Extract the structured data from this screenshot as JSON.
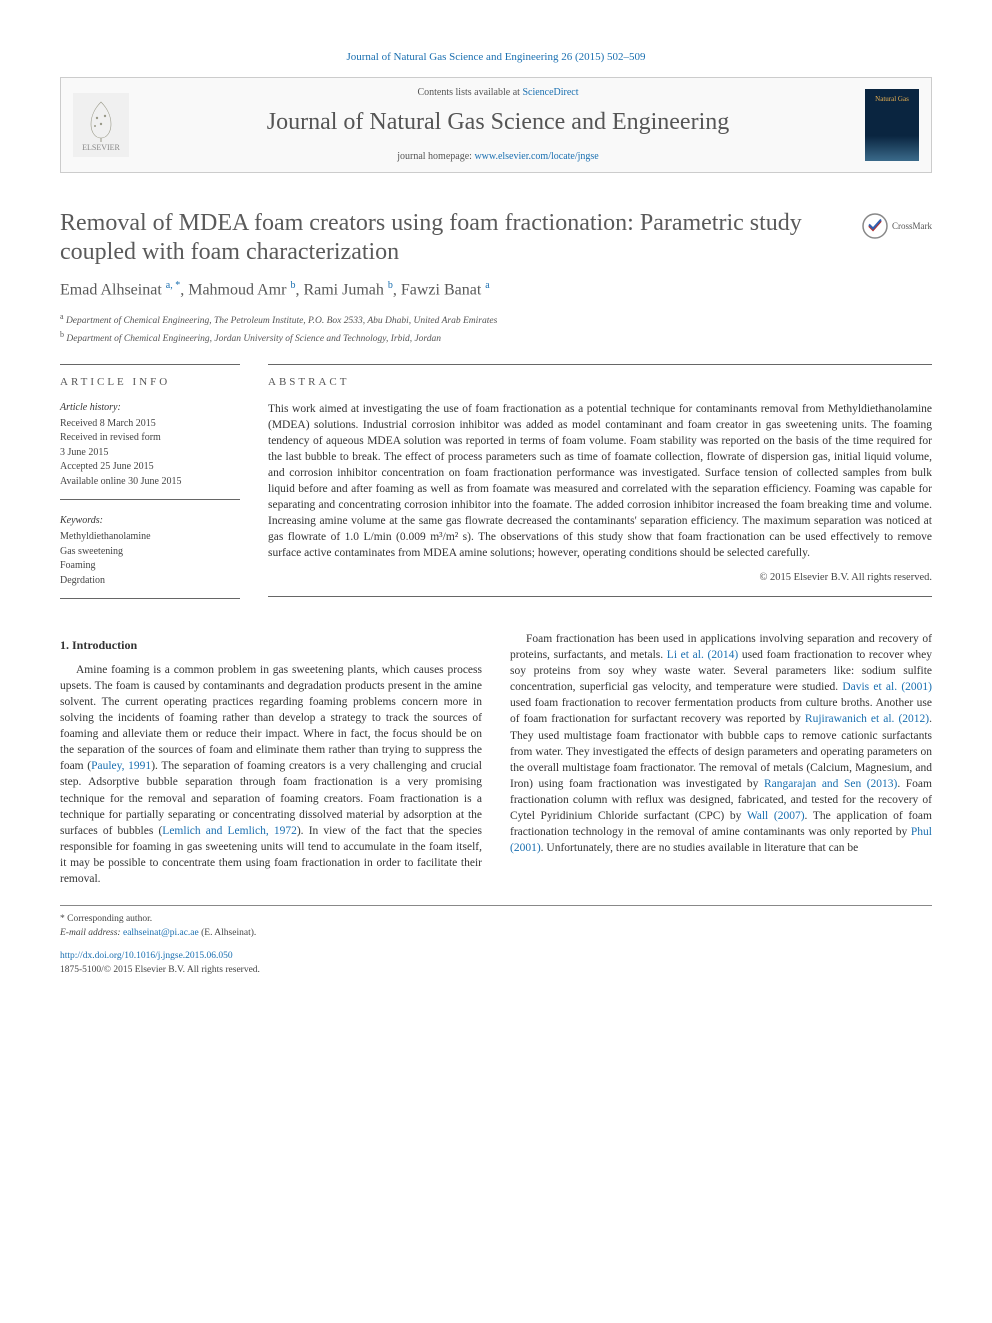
{
  "citation": {
    "prefix": "Journal of Natural Gas Science and Engineering 26 (2015) 502–509"
  },
  "header": {
    "contents_prefix": "Contents lists available at ",
    "contents_link": "ScienceDirect",
    "journal_name": "Journal of Natural Gas Science and Engineering",
    "homepage_prefix": "journal homepage: ",
    "homepage_link": "www.elsevier.com/locate/jngse",
    "elsevier_label": "ELSEVIER",
    "cover_label": "Natural Gas"
  },
  "title": "Removal of MDEA foam creators using foam fractionation: Parametric study coupled with foam characterization",
  "crossmark": "CrossMark",
  "authors_html": "Emad Alhseinat <sup>a, *</sup>, Mahmoud Amr <sup>b</sup>, Rami Jumah <sup>b</sup>, Fawzi Banat <sup>a</sup>",
  "affiliations": {
    "a": "Department of Chemical Engineering, The Petroleum Institute, P.O. Box 2533, Abu Dhabi, United Arab Emirates",
    "b": "Department of Chemical Engineering, Jordan University of Science and Technology, Irbid, Jordan"
  },
  "article_info": {
    "heading": "ARTICLE INFO",
    "history_label": "Article history:",
    "received": "Received 8 March 2015",
    "revised": "Received in revised form",
    "revised_date": "3 June 2015",
    "accepted": "Accepted 25 June 2015",
    "online": "Available online 30 June 2015",
    "keywords_label": "Keywords:",
    "keywords": [
      "Methyldiethanolamine",
      "Gas sweetening",
      "Foaming",
      "Degrdation"
    ]
  },
  "abstract": {
    "heading": "ABSTRACT",
    "text": "This work aimed at investigating the use of foam fractionation as a potential technique for contaminants removal from Methyldiethanolamine (MDEA) solutions. Industrial corrosion inhibitor was added as model contaminant and foam creator in gas sweetening units. The foaming tendency of aqueous MDEA solution was reported in terms of foam volume. Foam stability was reported on the basis of the time required for the last bubble to break. The effect of process parameters such as time of foamate collection, flowrate of dispersion gas, initial liquid volume, and corrosion inhibitor concentration on foam fractionation performance was investigated. Surface tension of collected samples from bulk liquid before and after foaming as well as from foamate was measured and correlated with the separation efficiency. Foaming was capable for separating and concentrating corrosion inhibitor into the foamate. The added corrosion inhibitor increased the foam breaking time and volume. Increasing amine volume at the same gas flowrate decreased the contaminants' separation efficiency. The maximum separation was noticed at gas flowrate of 1.0 L/min (0.009 m³/m² s). The observations of this study show that foam fractionation can be used effectively to remove surface active contaminates from MDEA amine solutions; however, operating conditions should be selected carefully.",
    "copyright": "© 2015 Elsevier B.V. All rights reserved."
  },
  "intro": {
    "heading": "1. Introduction",
    "p1": "Amine foaming is a common problem in gas sweetening plants, which causes process upsets. The foam is caused by contaminants and degradation products present in the amine solvent. The current operating practices regarding foaming problems concern more in solving the incidents of foaming rather than develop a strategy to track the sources of foaming and alleviate them or reduce their impact. Where in fact, the focus should be on the separation of the sources of foam and eliminate them rather than trying to suppress the foam (",
    "ref1": "Pauley, 1991",
    "p1b": "). The separation of foaming creators is a very challenging and crucial step. Adsorptive bubble separation through foam fractionation is a very promising technique for the removal and separation of foaming creators. Foam fractionation is a technique for partially separating or concentrating dissolved material by adsorption at the surfaces of bubbles (",
    "ref2": "Lemlich and Lemlich, 1972",
    "p1c": "). In view of the fact that the species responsible for foaming in gas sweetening units will tend to accumulate in the foam itself, it may be possible to concentrate them using foam fractionation in order to facilitate their removal.",
    "p2a": "Foam fractionation has been used in applications involving separation and recovery of proteins, surfactants, and metals. ",
    "ref3": "Li et al. (2014)",
    "p2b": " used foam fractionation to recover whey soy proteins from soy whey waste water. Several parameters like: sodium sulfite concentration, superficial gas velocity, and temperature were studied. ",
    "ref4": "Davis et al. (2001)",
    "p2c": " used foam fractionation to recover fermentation products from culture broths. Another use of foam fractionation for surfactant recovery was reported by ",
    "ref5": "Rujirawanich et al. (2012)",
    "p2d": ". They used multistage foam fractionator with bubble caps to remove cationic surfactants from water. They investigated the effects of design parameters and operating parameters on the overall multistage foam fractionator. The removal of metals (Calcium, Magnesium, and Iron) using foam fractionation was investigated by ",
    "ref6": "Rangarajan and Sen (2013)",
    "p2e": ". Foam fractionation column with reflux was designed, fabricated, and tested for the recovery of Cytel Pyridinium Chloride surfactant (CPC) by ",
    "ref7": "Wall (2007)",
    "p2f": ". The application of foam fractionation technology in the removal of amine contaminants was only reported by ",
    "ref8": "Phul (2001)",
    "p2g": ". Unfortunately, there are no studies available in literature that can be"
  },
  "footer": {
    "corr": "* Corresponding author.",
    "email_label": "E-mail address: ",
    "email": "ealhseinat@pi.ac.ae",
    "email_suffix": " (E. Alhseinat).",
    "doi_link": "http://dx.doi.org/10.1016/j.jngse.2015.06.050",
    "issn": "1875-5100/© 2015 Elsevier B.V. All rights reserved."
  },
  "colors": {
    "link": "#1a6fb0",
    "text": "#333333",
    "heading_gray": "#5a5a5a",
    "rule": "#666666",
    "box_border": "#cccccc"
  }
}
